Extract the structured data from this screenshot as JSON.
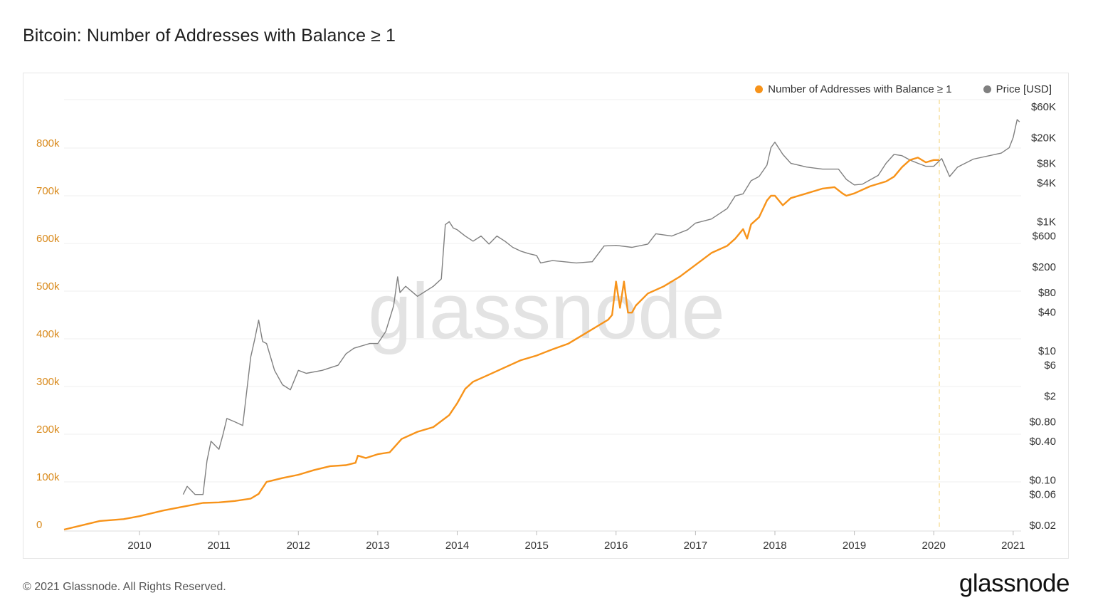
{
  "title": "Bitcoin: Number of Addresses with Balance ≥ 1",
  "footer": {
    "copyright": "© 2021 Glassnode. All Rights Reserved.",
    "brand": "glassnode"
  },
  "watermark": "glassnode",
  "colors": {
    "addresses": "#f7931a",
    "price": "#808080",
    "left_axis": "#d98a1c",
    "grid": "#efefef"
  },
  "chart_data": {
    "type": "line",
    "title": "Bitcoin: Number of Addresses with Balance ≥ 1",
    "x_ticks": [
      "2010",
      "2011",
      "2012",
      "2013",
      "2014",
      "2015",
      "2016",
      "2017",
      "2018",
      "2019",
      "2020",
      "2021"
    ],
    "xlim": [
      2009.05,
      2021.1
    ],
    "left_axis": {
      "label": "Number of Addresses with Balance ≥ 1",
      "ylim": [
        0,
        900000
      ],
      "ticks": [
        0,
        100000,
        200000,
        300000,
        400000,
        500000,
        600000,
        700000,
        800000
      ],
      "tick_labels": [
        "0",
        "100k",
        "200k",
        "300k",
        "400k",
        "500k",
        "600k",
        "700k",
        "800k"
      ]
    },
    "right_axis": {
      "label": "Price [USD]",
      "scale": "log",
      "ticks": [
        0.02,
        0.06,
        0.1,
        0.4,
        0.8,
        2,
        6,
        10,
        40,
        80,
        200,
        600,
        1000,
        4000,
        8000,
        20000,
        60000
      ],
      "tick_labels": [
        "$0.02",
        "$0.06",
        "$0.10",
        "$0.40",
        "$0.80",
        "$2",
        "$6",
        "$10",
        "$40",
        "$80",
        "$200",
        "$600",
        "$1K",
        "$4K",
        "$8K",
        "$20K",
        "$60K"
      ]
    },
    "marker_line_x": 2020.07,
    "series": [
      {
        "name": "Number of Addresses with Balance ≥ 1",
        "axis": "left",
        "x": [
          2009.05,
          2009.3,
          2009.5,
          2009.8,
          2010.0,
          2010.3,
          2010.55,
          2010.8,
          2011.0,
          2011.2,
          2011.4,
          2011.5,
          2011.6,
          2011.8,
          2012.0,
          2012.2,
          2012.4,
          2012.6,
          2012.72,
          2012.75,
          2012.85,
          2013.0,
          2013.15,
          2013.3,
          2013.5,
          2013.7,
          2013.9,
          2014.0,
          2014.1,
          2014.2,
          2014.4,
          2014.6,
          2014.8,
          2015.0,
          2015.2,
          2015.4,
          2015.6,
          2015.8,
          2015.9,
          2015.95,
          2016.0,
          2016.05,
          2016.1,
          2016.15,
          2016.2,
          2016.25,
          2016.4,
          2016.6,
          2016.8,
          2017.0,
          2017.2,
          2017.4,
          2017.5,
          2017.6,
          2017.65,
          2017.7,
          2017.8,
          2017.9,
          2017.95,
          2018.0,
          2018.1,
          2018.2,
          2018.4,
          2018.6,
          2018.75,
          2018.85,
          2018.9,
          2019.0,
          2019.2,
          2019.4,
          2019.5,
          2019.6,
          2019.7,
          2019.8,
          2019.9,
          2020.0,
          2020.07
        ],
        "y": [
          0,
          10000,
          18000,
          22000,
          28000,
          40000,
          48000,
          56000,
          57000,
          60000,
          65000,
          75000,
          100000,
          108000,
          115000,
          125000,
          133000,
          135000,
          140000,
          155000,
          150000,
          158000,
          162000,
          190000,
          205000,
          215000,
          240000,
          265000,
          295000,
          310000,
          325000,
          340000,
          355000,
          365000,
          378000,
          390000,
          410000,
          430000,
          440000,
          450000,
          520000,
          465000,
          520000,
          455000,
          455000,
          470000,
          495000,
          510000,
          530000,
          555000,
          580000,
          595000,
          610000,
          630000,
          610000,
          640000,
          655000,
          690000,
          700000,
          700000,
          680000,
          695000,
          705000,
          715000,
          718000,
          705000,
          700000,
          705000,
          720000,
          730000,
          740000,
          760000,
          775000,
          780000,
          770000,
          775000,
          775000
        ]
      },
      {
        "name": "Price [USD]",
        "axis": "right",
        "x": [
          2010.55,
          2010.6,
          2010.7,
          2010.8,
          2010.85,
          2010.9,
          2011.0,
          2011.05,
          2011.1,
          2011.2,
          2011.3,
          2011.4,
          2011.45,
          2011.5,
          2011.55,
          2011.6,
          2011.7,
          2011.8,
          2011.9,
          2012.0,
          2012.1,
          2012.3,
          2012.5,
          2012.6,
          2012.7,
          2012.9,
          2013.0,
          2013.1,
          2013.2,
          2013.25,
          2013.28,
          2013.35,
          2013.5,
          2013.7,
          2013.8,
          2013.85,
          2013.9,
          2013.95,
          2014.0,
          2014.1,
          2014.2,
          2014.3,
          2014.4,
          2014.5,
          2014.6,
          2014.7,
          2014.8,
          2014.9,
          2015.0,
          2015.05,
          2015.2,
          2015.5,
          2015.7,
          2015.85,
          2016.0,
          2016.2,
          2016.4,
          2016.5,
          2016.7,
          2016.9,
          2017.0,
          2017.2,
          2017.4,
          2017.5,
          2017.6,
          2017.7,
          2017.8,
          2017.9,
          2017.95,
          2018.0,
          2018.1,
          2018.2,
          2018.4,
          2018.6,
          2018.8,
          2018.9,
          2019.0,
          2019.1,
          2019.3,
          2019.4,
          2019.5,
          2019.6,
          2019.7,
          2019.8,
          2019.9,
          2020.0,
          2020.1,
          2020.2,
          2020.3,
          2020.5,
          2020.7,
          2020.85,
          2020.95,
          2021.0,
          2021.05,
          2021.08
        ],
        "y": [
          0.06,
          0.08,
          0.06,
          0.06,
          0.2,
          0.4,
          0.3,
          0.5,
          0.9,
          0.8,
          0.7,
          8,
          15,
          30,
          14,
          13,
          5,
          3,
          2.5,
          5,
          4.5,
          5,
          6,
          9,
          11,
          13,
          13,
          20,
          50,
          140,
          80,
          100,
          70,
          100,
          130,
          900,
          1000,
          800,
          750,
          600,
          500,
          600,
          450,
          600,
          500,
          400,
          350,
          320,
          300,
          230,
          250,
          230,
          240,
          420,
          430,
          400,
          450,
          650,
          600,
          750,
          950,
          1100,
          1600,
          2500,
          2700,
          4300,
          5000,
          7500,
          14000,
          17000,
          11000,
          8000,
          7000,
          6500,
          6500,
          4500,
          3700,
          3800,
          5200,
          8000,
          11000,
          10500,
          9000,
          8000,
          7200,
          7200,
          9500,
          5000,
          7000,
          9300,
          10500,
          11500,
          14000,
          20000,
          38000,
          35000
        ]
      }
    ]
  }
}
